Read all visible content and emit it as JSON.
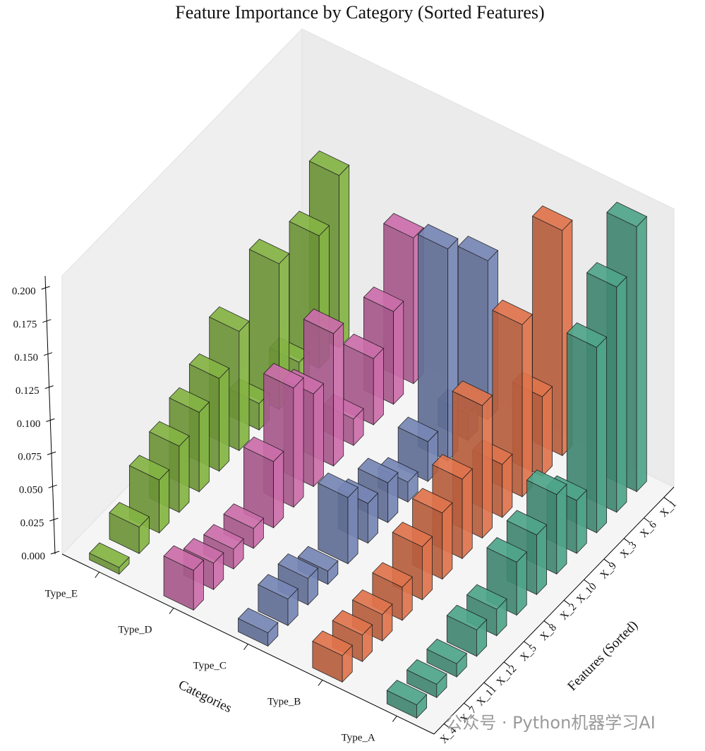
{
  "chart_data": {
    "type": "bar3d",
    "title": "Feature Importance by Category (Sorted Features)",
    "xlabel": "Features (Sorted)",
    "ylabel": "Categories",
    "categories": [
      "X_4",
      "X_7",
      "X_11",
      "X_12",
      "X_5",
      "X_8",
      "X_2",
      "X_10",
      "X_9",
      "X_3",
      "X_6",
      "X_1"
    ],
    "series": [
      {
        "name": "Type_A",
        "color": "#4fa58a",
        "values": [
          0.01,
          0.01,
          0.01,
          0.02,
          0.02,
          0.04,
          0.045,
          0.06,
          0.04,
          0.14,
          0.17,
          0.2
        ]
      },
      {
        "name": "Type_B",
        "color": "#e0744c",
        "values": [
          0.02,
          0.02,
          0.02,
          0.025,
          0.04,
          0.05,
          0.06,
          0.1,
          0.04,
          0.13,
          0.06,
          0.17
        ]
      },
      {
        "name": "Type_C",
        "color": "#7787b6",
        "values": [
          0.01,
          0.02,
          0.02,
          0.01,
          0.05,
          0.03,
          0.03,
          0.015,
          0.03,
          0.16,
          0.02,
          0.12
        ]
      },
      {
        "name": "Type_D",
        "color": "#cc6eab",
        "values": [
          0.03,
          0.02,
          0.015,
          0.015,
          0.05,
          0.09,
          0.07,
          0.1,
          0.02,
          0.05,
          0.07,
          0.11
        ]
      },
      {
        "name": "Type_E",
        "color": "#85b444",
        "values": [
          0.005,
          0.02,
          0.04,
          0.05,
          0.06,
          0.07,
          0.09,
          0.02,
          0.11,
          0.02,
          0.1,
          0.13
        ]
      }
    ],
    "zlim": [
      0,
      0.21
    ],
    "zticks": [
      {
        "value": 0,
        "label": "0.000"
      },
      {
        "value": 0.025,
        "label": "0.025"
      },
      {
        "value": 0.05,
        "label": "0.050"
      },
      {
        "value": 0.075,
        "label": "0.075"
      },
      {
        "value": 0.1,
        "label": "0.100"
      },
      {
        "value": 0.125,
        "label": "0.125"
      },
      {
        "value": 0.15,
        "label": "0.150"
      },
      {
        "value": 0.175,
        "label": "0.175"
      },
      {
        "value": 0.2,
        "label": "0.200"
      }
    ]
  },
  "watermark": "公众号 · Python机器学习AI"
}
